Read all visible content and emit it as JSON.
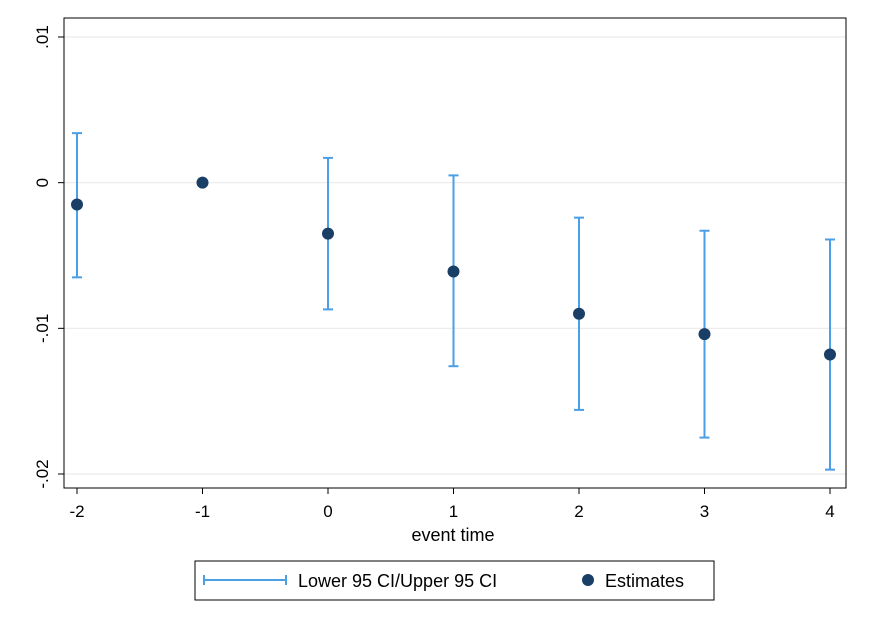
{
  "chart_data": {
    "type": "scatter",
    "title": "",
    "xlabel": "event time",
    "ylabel": "",
    "x": [
      -2,
      -1,
      0,
      1,
      2,
      3,
      4
    ],
    "xlim": [
      -2,
      4
    ],
    "ylim": [
      -0.02,
      0.01
    ],
    "x_ticks": [
      {
        "value": -2,
        "label": "-2"
      },
      {
        "value": -1,
        "label": "-1"
      },
      {
        "value": 0,
        "label": "0"
      },
      {
        "value": 1,
        "label": "1"
      },
      {
        "value": 2,
        "label": "2"
      },
      {
        "value": 3,
        "label": "3"
      },
      {
        "value": 4,
        "label": "4"
      }
    ],
    "y_ticks": [
      {
        "value": 0.01,
        "label": ".01"
      },
      {
        "value": 0,
        "label": "0"
      },
      {
        "value": -0.01,
        "label": "-.01"
      },
      {
        "value": -0.02,
        "label": "-.02"
      }
    ],
    "grid": "horizontal",
    "legend_position": "bottom",
    "series": [
      {
        "name": "Lower 95 CI/Upper 95 CI",
        "kind": "errorbar",
        "color": "#4a9fe6",
        "points": [
          {
            "x": -2,
            "low": -0.0065,
            "high": 0.0034
          },
          {
            "x": 0,
            "low": -0.0087,
            "high": 0.0017
          },
          {
            "x": 1,
            "low": -0.0126,
            "high": 0.0005
          },
          {
            "x": 2,
            "low": -0.0156,
            "high": -0.0024
          },
          {
            "x": 3,
            "low": -0.0175,
            "high": -0.0033
          },
          {
            "x": 4,
            "low": -0.0197,
            "high": -0.0039
          }
        ]
      },
      {
        "name": "Estimates",
        "kind": "point",
        "color": "#1a3f66",
        "points": [
          {
            "x": -2,
            "y": -0.0015
          },
          {
            "x": -1,
            "y": 0
          },
          {
            "x": 0,
            "y": -0.0035
          },
          {
            "x": 1,
            "y": -0.0061
          },
          {
            "x": 2,
            "y": -0.009
          },
          {
            "x": 3,
            "y": -0.0104
          },
          {
            "x": 4,
            "y": -0.0118
          }
        ]
      }
    ]
  }
}
